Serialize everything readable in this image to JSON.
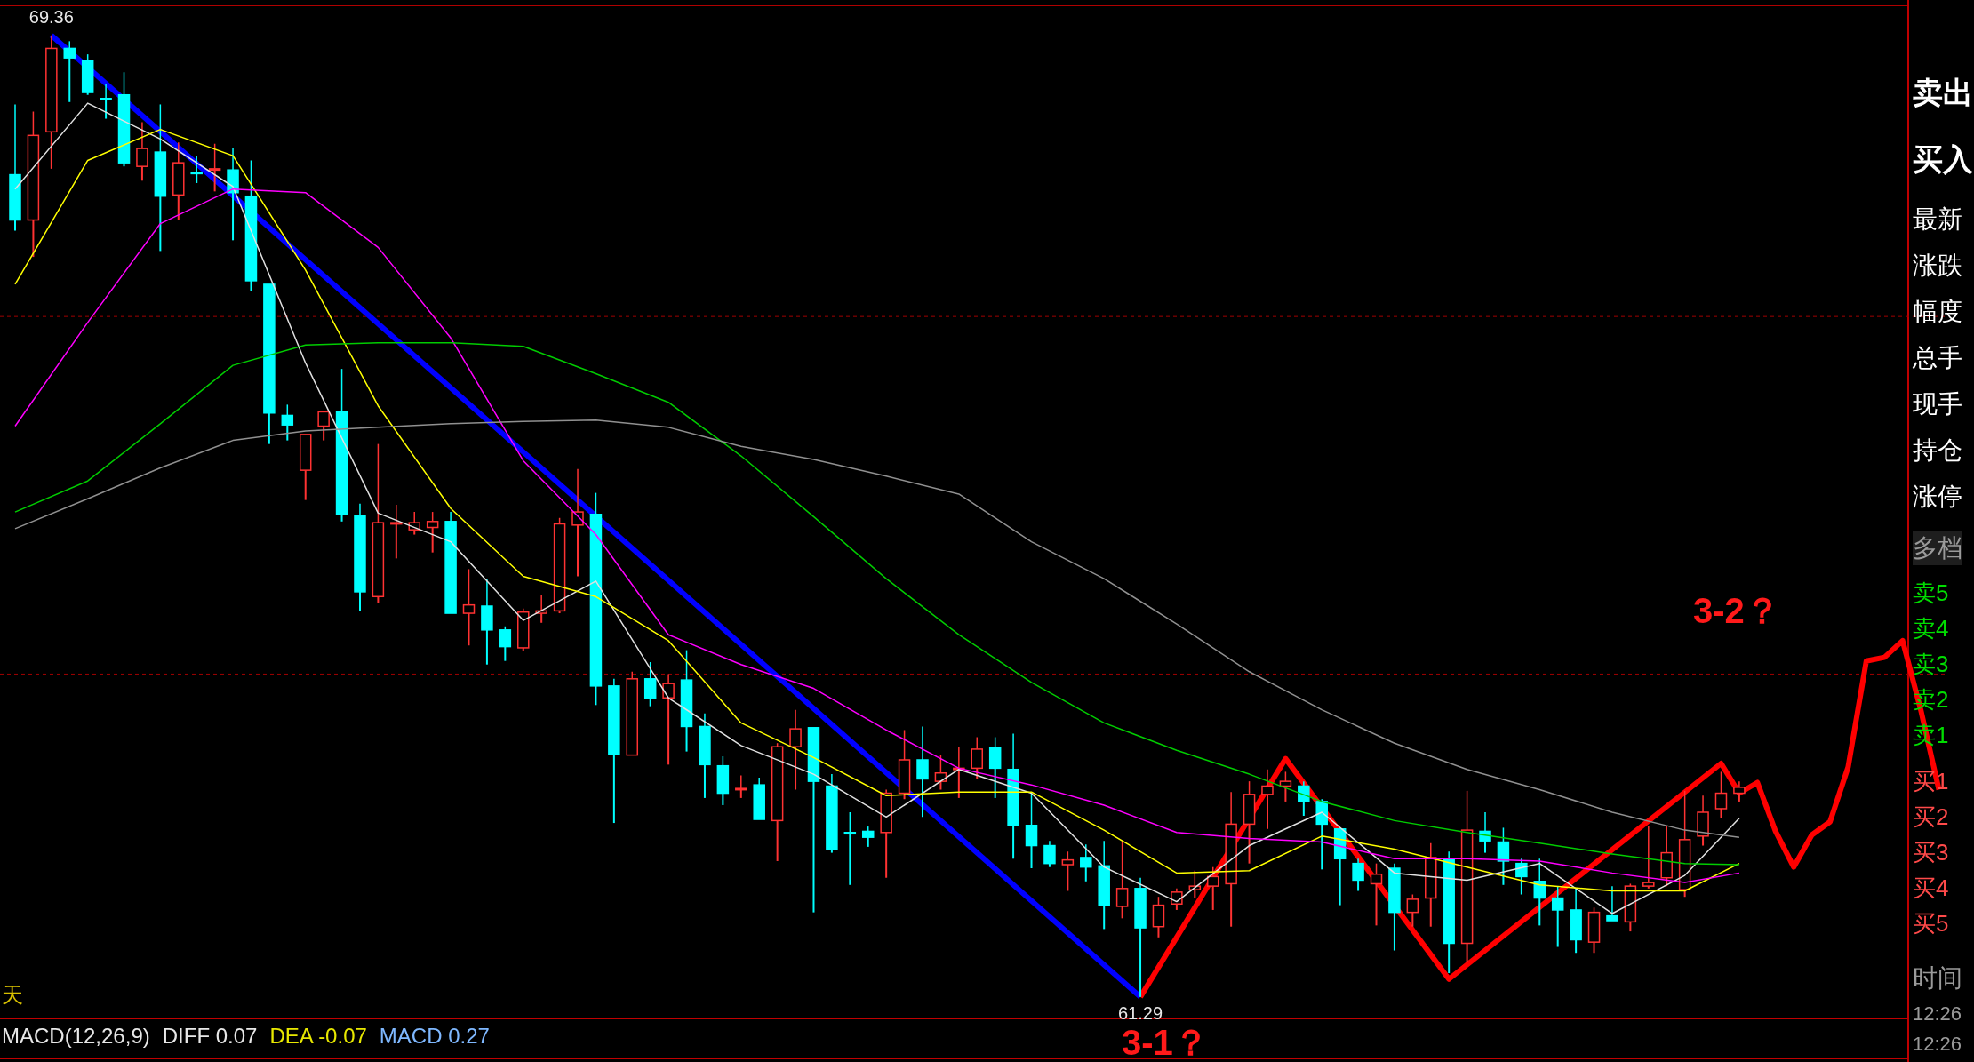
{
  "chart_data": {
    "type": "candlestick",
    "categories": [
      null,
      null,
      null,
      null,
      null,
      null,
      null,
      null,
      null,
      null,
      null,
      null,
      null,
      null,
      null,
      null,
      null,
      null,
      null,
      null,
      null,
      null,
      null,
      null,
      null,
      null,
      null,
      null,
      null,
      null,
      null,
      null,
      null,
      null,
      null,
      null,
      null,
      null,
      null,
      null,
      null,
      null,
      null,
      null,
      null,
      null,
      null,
      null,
      null,
      null,
      null,
      null,
      null,
      null,
      null,
      null,
      null,
      null,
      null,
      null,
      null,
      null,
      null,
      null,
      null,
      null,
      null,
      null,
      null,
      null,
      null,
      null,
      null,
      null,
      null,
      null,
      null,
      null,
      null,
      null,
      null,
      null,
      null,
      null,
      null,
      null,
      null,
      null,
      null,
      null,
      null,
      null,
      null,
      null,
      null,
      null,
      null,
      null,
      null,
      null,
      null,
      null,
      null,
      null,
      null,
      null,
      null
    ],
    "ohlc": [
      [
        68.19,
        68.78,
        67.72,
        67.81
      ],
      [
        67.81,
        68.72,
        67.5,
        68.52
      ],
      [
        68.55,
        69.36,
        68.24,
        69.25
      ],
      [
        69.25,
        69.31,
        68.8,
        69.17
      ],
      [
        69.15,
        69.2,
        68.86,
        68.88
      ],
      [
        68.83,
        68.95,
        68.66,
        68.82
      ],
      [
        68.86,
        69.05,
        68.26,
        68.29
      ],
      [
        68.26,
        68.63,
        68.14,
        68.41
      ],
      [
        68.38,
        68.78,
        67.55,
        68.01
      ],
      [
        68.02,
        68.46,
        67.81,
        68.29
      ],
      [
        68.21,
        68.35,
        68.12,
        68.2
      ],
      [
        68.23,
        68.45,
        68.05,
        68.24
      ],
      [
        68.23,
        68.41,
        67.64,
        68.04
      ],
      [
        68.01,
        68.31,
        67.21,
        67.3
      ],
      [
        67.27,
        67.27,
        65.93,
        66.19
      ],
      [
        66.17,
        66.26,
        65.96,
        66.09
      ],
      [
        65.71,
        66.01,
        65.46,
        66.01
      ],
      [
        66.08,
        66.21,
        65.96,
        66.2
      ],
      [
        66.2,
        66.56,
        65.28,
        65.34
      ],
      [
        65.33,
        65.43,
        64.53,
        64.69
      ],
      [
        64.65,
        65.93,
        64.6,
        65.27
      ],
      [
        65.26,
        65.42,
        64.97,
        65.27
      ],
      [
        65.21,
        65.36,
        65.17,
        65.27
      ],
      [
        65.23,
        65.36,
        65.02,
        65.28
      ],
      [
        65.28,
        65.36,
        64.51,
        64.51
      ],
      [
        64.51,
        64.88,
        64.24,
        64.58
      ],
      [
        64.57,
        64.8,
        64.08,
        64.37
      ],
      [
        64.37,
        64.4,
        64.11,
        64.23
      ],
      [
        64.22,
        64.55,
        64.19,
        64.52
      ],
      [
        64.51,
        64.66,
        64.43,
        64.53
      ],
      [
        64.53,
        65.31,
        64.51,
        65.26
      ],
      [
        65.25,
        65.72,
        64.82,
        65.36
      ],
      [
        65.34,
        65.52,
        63.74,
        63.9
      ],
      [
        63.9,
        63.96,
        62.75,
        63.33
      ],
      [
        63.32,
        64.02,
        63.32,
        63.96
      ],
      [
        63.96,
        64.1,
        63.73,
        63.8
      ],
      [
        63.8,
        64.0,
        63.24,
        63.92
      ],
      [
        63.95,
        64.2,
        63.35,
        63.56
      ],
      [
        63.56,
        63.67,
        62.96,
        63.24
      ],
      [
        63.23,
        63.31,
        62.9,
        63.0
      ],
      [
        63.03,
        63.15,
        62.96,
        63.04
      ],
      [
        63.07,
        63.13,
        62.78,
        62.78
      ],
      [
        62.77,
        63.42,
        62.43,
        63.39
      ],
      [
        63.39,
        63.7,
        63.03,
        63.54
      ],
      [
        63.55,
        63.55,
        62.0,
        63.1
      ],
      [
        63.06,
        63.16,
        62.5,
        62.53
      ],
      [
        62.67,
        62.84,
        62.23,
        62.66
      ],
      [
        62.68,
        62.72,
        62.55,
        62.63
      ],
      [
        62.67,
        63.03,
        62.29,
        63.0
      ],
      [
        63.0,
        63.53,
        62.95,
        63.28
      ],
      [
        63.28,
        63.56,
        62.8,
        63.12
      ],
      [
        63.1,
        63.32,
        63.03,
        63.17
      ],
      [
        63.2,
        63.39,
        62.96,
        63.21
      ],
      [
        63.21,
        63.47,
        63.12,
        63.37
      ],
      [
        63.38,
        63.47,
        62.96,
        63.21
      ],
      [
        63.2,
        63.5,
        62.45,
        62.73
      ],
      [
        62.73,
        63.0,
        62.37,
        62.56
      ],
      [
        62.56,
        62.6,
        62.38,
        62.41
      ],
      [
        62.4,
        62.51,
        62.18,
        62.44
      ],
      [
        62.46,
        62.57,
        62.26,
        62.38
      ],
      [
        62.39,
        62.6,
        61.86,
        62.06
      ],
      [
        62.05,
        62.6,
        61.95,
        62.2
      ],
      [
        62.2,
        62.29,
        61.29,
        61.87
      ],
      [
        61.88,
        62.13,
        61.79,
        62.06
      ],
      [
        62.07,
        62.2,
        62.02,
        62.17
      ],
      [
        62.19,
        62.35,
        62.12,
        62.22
      ],
      [
        62.22,
        62.38,
        62.02,
        62.3
      ],
      [
        62.24,
        63.01,
        61.88,
        62.74
      ],
      [
        62.74,
        63.1,
        62.41,
        62.99
      ],
      [
        62.99,
        63.2,
        62.7,
        63.06
      ],
      [
        63.06,
        63.18,
        62.93,
        63.1
      ],
      [
        63.06,
        63.1,
        62.81,
        62.93
      ],
      [
        62.93,
        62.95,
        62.36,
        62.74
      ],
      [
        62.7,
        62.7,
        62.06,
        62.45
      ],
      [
        62.41,
        62.45,
        62.18,
        62.27
      ],
      [
        62.24,
        62.41,
        61.89,
        62.32
      ],
      [
        62.37,
        62.41,
        61.68,
        62.0
      ],
      [
        62.0,
        62.15,
        61.88,
        62.11
      ],
      [
        62.12,
        62.58,
        61.88,
        62.46
      ],
      [
        62.45,
        62.51,
        61.49,
        61.74
      ],
      [
        61.74,
        63.02,
        61.58,
        62.69
      ],
      [
        62.68,
        62.84,
        62.5,
        62.6
      ],
      [
        62.59,
        62.71,
        62.23,
        62.43
      ],
      [
        62.41,
        62.45,
        62.15,
        62.3
      ],
      [
        62.26,
        62.45,
        61.89,
        62.12
      ],
      [
        62.12,
        62.22,
        61.71,
        62.02
      ],
      [
        62.02,
        62.2,
        61.66,
        61.77
      ],
      [
        61.75,
        62.04,
        61.66,
        62.0
      ],
      [
        61.97,
        62.22,
        61.93,
        61.93
      ],
      [
        61.92,
        62.24,
        61.84,
        62.22
      ],
      [
        62.22,
        62.72,
        62.2,
        62.25
      ],
      [
        62.29,
        62.72,
        62.22,
        62.5
      ],
      [
        62.19,
        63.02,
        62.13,
        62.61
      ],
      [
        62.64,
        62.98,
        62.56,
        62.84
      ],
      [
        62.87,
        63.18,
        62.79,
        63.0
      ],
      [
        63.0,
        63.1,
        62.93,
        63.05
      ],
      null,
      null,
      null,
      null,
      null,
      null,
      null,
      null,
      null,
      null,
      null
    ],
    "colors": [
      "#00ffff",
      "#ff3232",
      "#ff3232",
      "#00ffff",
      "#00ffff",
      "#00ffff",
      "#00ffff",
      "#ff3232",
      "#00ffff",
      "#ff3232",
      "#00ffff",
      "#ff3232",
      "#00ffff",
      "#00ffff",
      "#00ffff",
      "#00ffff",
      "#ff3232",
      "#ff3232",
      "#00ffff",
      "#00ffff",
      "#ff3232",
      "#ff3232",
      "#ff3232",
      "#ff3232",
      "#00ffff",
      "#ff3232",
      "#00ffff",
      "#00ffff",
      "#ff3232",
      "#ff3232",
      "#ff3232",
      "#ff3232",
      "#00ffff",
      "#00ffff",
      "#ff3232",
      "#00ffff",
      "#ff3232",
      "#00ffff",
      "#00ffff",
      "#00ffff",
      "#ff3232",
      "#00ffff",
      "#ff3232",
      "#ff3232",
      "#00ffff",
      "#00ffff",
      "#00ffff",
      "#00ffff",
      "#ff3232",
      "#ff3232",
      "#00ffff",
      "#ff3232",
      "#ff3232",
      "#ff3232",
      "#00ffff",
      "#00ffff",
      "#00ffff",
      "#00ffff",
      "#ff3232",
      "#00ffff",
      "#00ffff",
      "#ff3232",
      "#00ffff",
      "#ff3232",
      "#ff3232",
      "#ff3232",
      "#ff3232",
      "#ff3232",
      "#ff3232",
      "#ff3232",
      "#ff3232",
      "#00ffff",
      "#00ffff",
      "#00ffff",
      "#00ffff",
      "#ff3232",
      "#00ffff",
      "#ff3232",
      "#ff3232",
      "#00ffff",
      "#ff3232",
      "#00ffff",
      "#00ffff",
      "#00ffff",
      "#00ffff",
      "#00ffff",
      "#00ffff",
      "#ff3232",
      "#00ffff",
      "#ff3232",
      "#ff3232",
      "#ff3232",
      "#ff3232",
      "#ff3232",
      "#ff3232",
      "#ff3232",
      null,
      null,
      null,
      null,
      null,
      null,
      null,
      null,
      null,
      null,
      null
    ],
    "series": [
      {
        "type": "line",
        "color": "#e0e0e0",
        "values": [
          68.07,
          null,
          null,
          null,
          68.79,
          null,
          null,
          null,
          68.49,
          null,
          null,
          null,
          68.09,
          null,
          null,
          null,
          66.61,
          null,
          null,
          null,
          65.35,
          null,
          null,
          null,
          65.11,
          null,
          null,
          null,
          64.45,
          null,
          null,
          null,
          64.78,
          null,
          null,
          null,
          63.8,
          null,
          null,
          null,
          63.4,
          null,
          null,
          null,
          63.16,
          null,
          null,
          null,
          62.8,
          null,
          null,
          null,
          63.2,
          null,
          null,
          null,
          63.0,
          null,
          null,
          null,
          62.38,
          null,
          null,
          null,
          62.09,
          null,
          null,
          null,
          62.56,
          null,
          null,
          null,
          62.84,
          null,
          null,
          null,
          62.33,
          null,
          null,
          null,
          62.27,
          null,
          null,
          null,
          62.41,
          null,
          null,
          null,
          61.99,
          null,
          null,
          null,
          62.31,
          null,
          null,
          62.79,
          null,
          null,
          null,
          null,
          null,
          null,
          null,
          null,
          null,
          null,
          null
        ]
      },
      {
        "type": "line",
        "color": "#ffff00",
        "values": [
          67.27,
          null,
          null,
          null,
          68.31,
          null,
          null,
          null,
          68.57,
          null,
          null,
          null,
          68.35,
          null,
          null,
          null,
          67.39,
          null,
          null,
          null,
          66.25,
          null,
          null,
          null,
          65.39,
          null,
          null,
          null,
          64.82,
          null,
          null,
          null,
          64.65,
          null,
          null,
          null,
          64.28,
          null,
          null,
          null,
          63.59,
          null,
          null,
          null,
          63.3,
          null,
          null,
          null,
          62.98,
          null,
          null,
          null,
          63.01,
          null,
          null,
          null,
          63.01,
          null,
          null,
          null,
          62.69,
          null,
          null,
          null,
          62.33,
          null,
          null,
          null,
          62.35,
          null,
          null,
          null,
          62.64,
          null,
          null,
          null,
          62.53,
          null,
          null,
          null,
          62.38,
          null,
          null,
          null,
          62.23,
          null,
          null,
          null,
          62.18,
          null,
          null,
          null,
          62.18,
          null,
          null,
          62.41,
          null,
          null,
          null,
          null,
          null,
          null,
          null,
          null,
          null,
          null,
          null
        ]
      },
      {
        "type": "line",
        "color": "#ff00ff",
        "values": [
          66.08,
          null,
          null,
          null,
          66.95,
          null,
          null,
          null,
          67.78,
          null,
          null,
          null,
          68.07,
          null,
          null,
          null,
          68.04,
          null,
          null,
          null,
          67.58,
          null,
          null,
          null,
          66.82,
          null,
          null,
          null,
          65.79,
          null,
          null,
          null,
          65.17,
          null,
          null,
          null,
          64.33,
          null,
          null,
          null,
          64.08,
          null,
          null,
          null,
          63.88,
          null,
          null,
          null,
          63.53,
          null,
          null,
          null,
          63.21,
          null,
          null,
          null,
          63.07,
          null,
          null,
          null,
          62.9,
          null,
          null,
          null,
          62.67,
          null,
          null,
          null,
          62.62,
          null,
          null,
          null,
          62.59,
          null,
          null,
          null,
          62.45,
          null,
          null,
          null,
          62.45,
          null,
          null,
          null,
          62.43,
          null,
          null,
          null,
          62.33,
          null,
          null,
          null,
          62.25,
          null,
          null,
          62.33,
          null,
          null,
          null,
          null,
          null,
          null,
          null,
          null,
          null,
          null,
          null
        ]
      },
      {
        "type": "line",
        "color": "#00cc00",
        "values": [
          65.36,
          null,
          null,
          null,
          65.62,
          null,
          null,
          null,
          66.1,
          null,
          null,
          null,
          66.59,
          null,
          null,
          null,
          66.76,
          null,
          null,
          null,
          66.78,
          null,
          null,
          null,
          66.78,
          null,
          null,
          null,
          66.75,
          null,
          null,
          null,
          66.52,
          null,
          null,
          null,
          66.28,
          null,
          null,
          null,
          65.83,
          null,
          null,
          null,
          65.32,
          null,
          null,
          null,
          64.8,
          null,
          null,
          null,
          64.33,
          null,
          null,
          null,
          63.93,
          null,
          null,
          null,
          63.59,
          null,
          null,
          null,
          63.36,
          null,
          null,
          null,
          63.16,
          null,
          null,
          null,
          62.93,
          null,
          null,
          null,
          62.77,
          null,
          null,
          null,
          62.67,
          null,
          null,
          null,
          62.58,
          null,
          null,
          null,
          62.49,
          null,
          null,
          null,
          62.41,
          null,
          null,
          62.4,
          null,
          null,
          null,
          null,
          null,
          null,
          null,
          null,
          null,
          null,
          null
        ]
      },
      {
        "type": "line",
        "color": "#909090",
        "values": [
          65.22,
          null,
          null,
          null,
          65.47,
          null,
          null,
          null,
          65.73,
          null,
          null,
          null,
          65.96,
          null,
          null,
          null,
          66.04,
          null,
          null,
          null,
          66.07,
          null,
          null,
          null,
          66.1,
          null,
          null,
          null,
          66.12,
          null,
          null,
          null,
          66.13,
          null,
          null,
          null,
          66.07,
          null,
          null,
          null,
          65.91,
          null,
          null,
          null,
          65.8,
          null,
          null,
          null,
          65.66,
          null,
          null,
          null,
          65.51,
          null,
          null,
          null,
          65.11,
          null,
          null,
          null,
          64.8,
          null,
          null,
          null,
          64.42,
          null,
          null,
          null,
          64.02,
          null,
          null,
          null,
          63.7,
          null,
          null,
          null,
          63.42,
          null,
          null,
          null,
          63.2,
          null,
          null,
          null,
          63.03,
          null,
          null,
          null,
          62.84,
          null,
          null,
          null,
          62.69,
          null,
          null,
          62.63,
          null,
          null,
          null,
          null,
          null,
          null,
          null,
          null,
          null,
          null,
          null
        ]
      },
      {
        "type": "line",
        "color": "#0000ff",
        "values": [
          null,
          null,
          69.36,
          null,
          null,
          null,
          null,
          null,
          null,
          null,
          null,
          null,
          null,
          null,
          null,
          null,
          null,
          null,
          null,
          null,
          null,
          null,
          null,
          null,
          null,
          null,
          null,
          null,
          null,
          null,
          null,
          null,
          null,
          null,
          null,
          null,
          null,
          null,
          null,
          null,
          null,
          null,
          null,
          null,
          null,
          null,
          null,
          null,
          null,
          null,
          null,
          null,
          null,
          null,
          null,
          null,
          null,
          null,
          null,
          null,
          null,
          null,
          61.29,
          null,
          null,
          null,
          null,
          null,
          null,
          null,
          null,
          null,
          null,
          null,
          null,
          null,
          null,
          null,
          null,
          null,
          null,
          null,
          null,
          null,
          null,
          null,
          null,
          null,
          null,
          null,
          null,
          null,
          null,
          null,
          null,
          null,
          null,
          null,
          null,
          null,
          null,
          null,
          null,
          null,
          null,
          null,
          null
        ]
      },
      {
        "type": "line",
        "color": "#ff0000",
        "values": [
          null,
          null,
          null,
          null,
          null,
          null,
          null,
          null,
          null,
          null,
          null,
          null,
          null,
          null,
          null,
          null,
          null,
          null,
          null,
          null,
          null,
          null,
          null,
          null,
          null,
          null,
          null,
          null,
          null,
          null,
          null,
          null,
          null,
          null,
          null,
          null,
          null,
          null,
          null,
          null,
          null,
          null,
          null,
          null,
          null,
          null,
          null,
          null,
          null,
          null,
          null,
          null,
          null,
          null,
          null,
          null,
          null,
          null,
          null,
          null,
          null,
          null,
          61.29,
          null,
          null,
          null,
          null,
          null,
          null,
          null,
          63.29,
          null,
          null,
          null,
          null,
          null,
          null,
          null,
          null,
          61.44,
          null,
          null,
          null,
          null,
          null,
          null,
          null,
          null,
          null,
          null,
          null,
          null,
          null,
          null,
          63.25,
          63.0,
          63.09,
          62.68,
          62.38,
          62.65,
          62.76,
          63.22,
          64.11,
          64.14,
          64.28,
          63.7,
          63.03
        ]
      }
    ],
    "yticks": [
      {
        "value": 64,
        "label": null
      },
      {
        "value": 67,
        "label": null
      }
    ],
    "grid": "y",
    "tick_labels": false,
    "annotations": [
      {
        "text": "69.36",
        "y": 69.36
      },
      {
        "text": "61.29",
        "y": 61.29
      },
      "3-1？",
      "3-2？",
      "天",
      "MACD(12,26,9)",
      "DIFF 0.07",
      "DEA -0.07",
      "MACD 0.27",
      "卖出",
      "买入",
      "最新",
      "涨跌",
      "幅度",
      "总手",
      "现手",
      "持仓",
      "涨停",
      "多档",
      "卖5",
      "卖4",
      "卖3",
      "卖2",
      "卖1",
      "买1",
      "买2",
      "买3",
      "买4",
      "买5",
      "时间",
      "12:26",
      "12:26"
    ]
  }
}
